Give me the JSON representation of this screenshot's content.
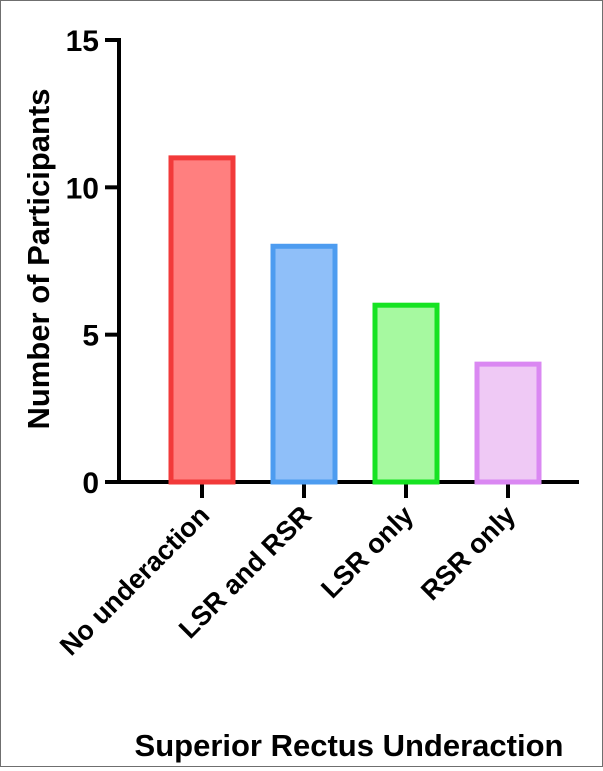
{
  "chart_data": {
    "type": "bar",
    "title": "",
    "xlabel": "Superior Rectus Underaction",
    "ylabel": "Number of Participants",
    "categories": [
      "No underaction",
      "LSR and RSR",
      "LSR only",
      "RSR only"
    ],
    "values": [
      11,
      8,
      6,
      4
    ],
    "ylim": [
      0,
      15
    ],
    "yticks": [
      "0",
      "5",
      "10",
      "15"
    ],
    "grid": false,
    "legend": "none",
    "colors": {
      "fill": [
        "#ff7f7f",
        "#8fbff9",
        "#a6f9a0",
        "#efc9f5"
      ],
      "stroke": [
        "#f23a3a",
        "#4d9cf0",
        "#16e322",
        "#da88f2"
      ]
    }
  }
}
